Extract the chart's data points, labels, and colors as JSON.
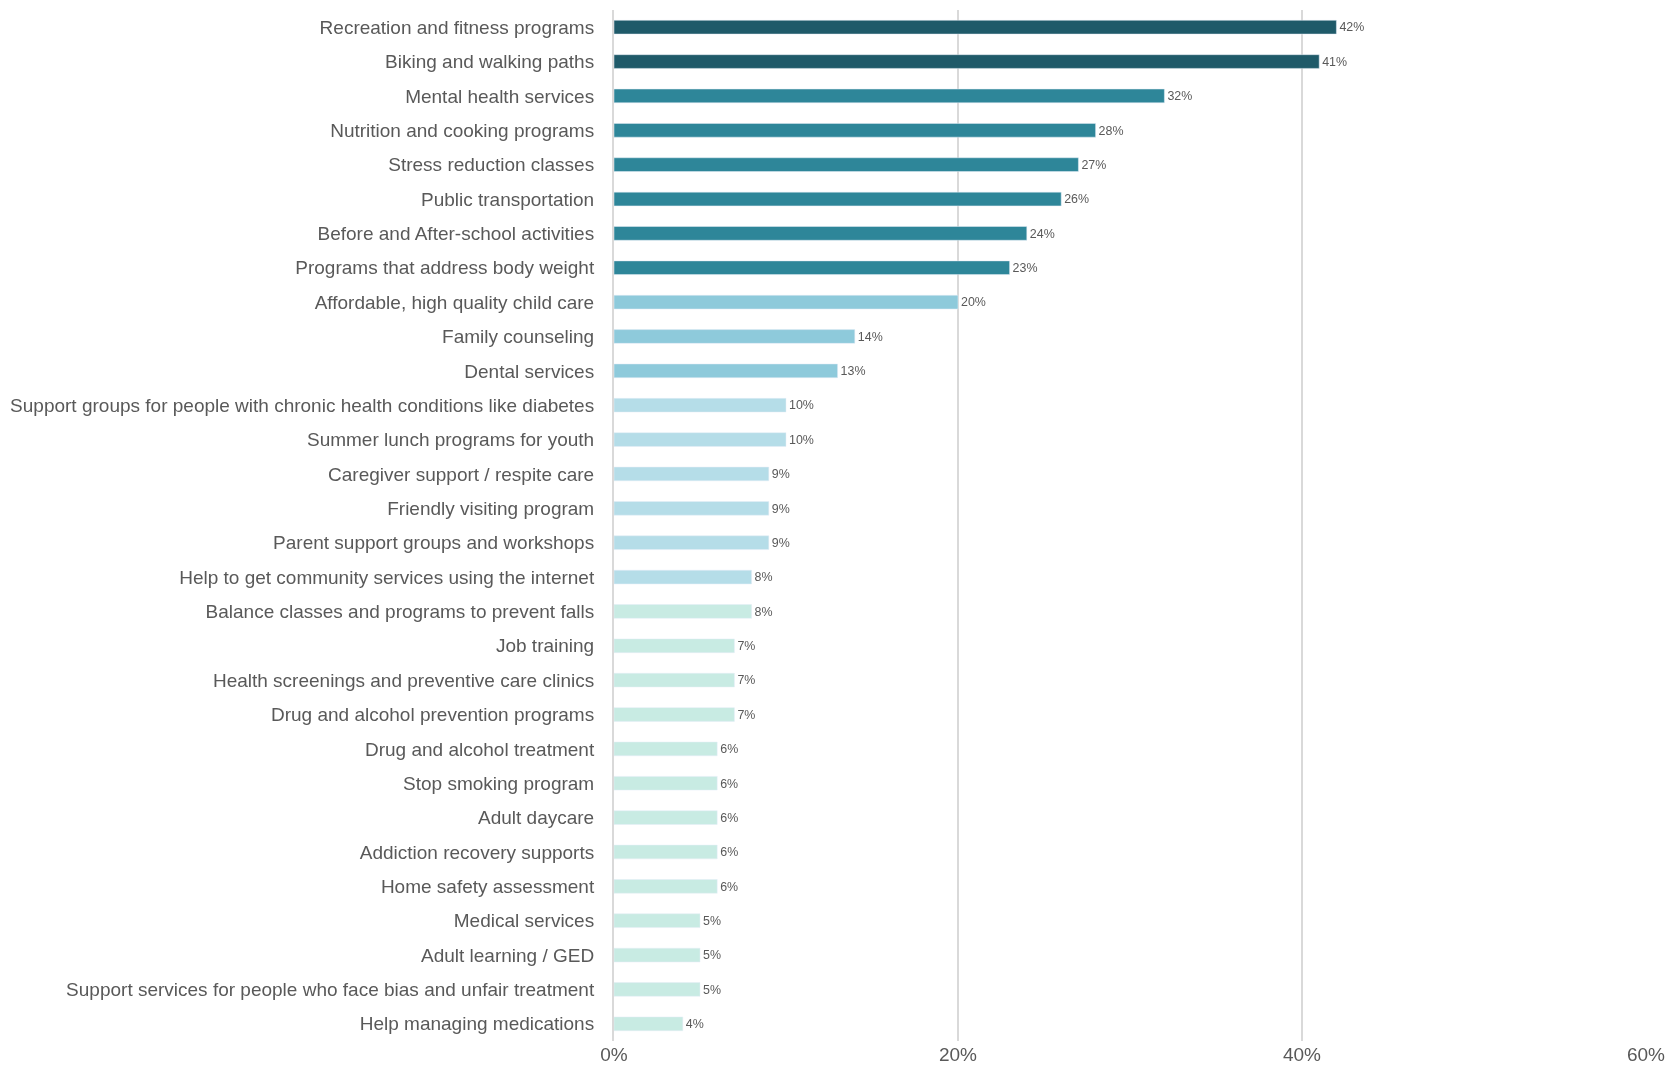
{
  "chart_data": {
    "type": "bar",
    "orientation": "horizontal",
    "categories": [
      "Recreation and fitness programs",
      "Biking and walking paths",
      "Mental health services",
      "Nutrition and cooking programs",
      "Stress reduction classes",
      "Public transportation",
      "Before and After-school activities",
      "Programs that address body weight",
      "Affordable, high quality child care",
      "Family counseling",
      "Dental services",
      "Support groups for people with chronic health conditions like diabetes",
      "Summer lunch programs for youth",
      "Caregiver support / respite care",
      "Friendly visiting program",
      "Parent support groups and workshops",
      "Help to get community services using the internet",
      "Balance classes and programs to prevent falls",
      "Job training",
      "Health screenings and preventive care clinics",
      "Drug and alcohol prevention programs",
      "Drug and alcohol treatment",
      "Stop smoking program",
      "Adult daycare",
      "Addiction recovery supports",
      "Home safety assessment",
      "Medical services",
      "Adult learning / GED",
      "Support services for people who face bias and unfair treatment",
      "Help managing medications"
    ],
    "values": [
      42,
      41,
      32,
      28,
      27,
      26,
      24,
      23,
      20,
      14,
      13,
      10,
      10,
      9,
      9,
      9,
      8,
      8,
      7,
      7,
      7,
      6,
      6,
      6,
      6,
      6,
      5,
      5,
      5,
      4
    ],
    "value_labels": [
      "42%",
      "41%",
      "32%",
      "28%",
      "27%",
      "26%",
      "24%",
      "23%",
      "20%",
      "14%",
      "13%",
      "10%",
      "10%",
      "9%",
      "9%",
      "9%",
      "8%",
      "8%",
      "7%",
      "7%",
      "7%",
      "6%",
      "6%",
      "6%",
      "6%",
      "6%",
      "5%",
      "5%",
      "5%",
      "4%"
    ],
    "colors": [
      "#1f5a69",
      "#1f5a69",
      "#2e8699",
      "#2e8699",
      "#2e8699",
      "#2e8699",
      "#2e8699",
      "#2e8699",
      "#8ecadb",
      "#8ecadb",
      "#8ecadb",
      "#b5dde8",
      "#b5dde8",
      "#b5dde8",
      "#b5dde8",
      "#b5dde8",
      "#b5dde8",
      "#c8ebe3",
      "#c8ebe3",
      "#c8ebe3",
      "#c8ebe3",
      "#c8ebe3",
      "#c8ebe3",
      "#c8ebe3",
      "#c8ebe3",
      "#c8ebe3",
      "#c8ebe3",
      "#c8ebe3",
      "#c8ebe3",
      "#c8ebe3"
    ],
    "xlim": [
      0,
      60
    ],
    "xticks": [
      {
        "value": 0,
        "label": "0%"
      },
      {
        "value": 20,
        "label": "20%"
      },
      {
        "value": 40,
        "label": "40%"
      },
      {
        "value": 60,
        "label": "60%"
      }
    ],
    "grid": "x"
  }
}
